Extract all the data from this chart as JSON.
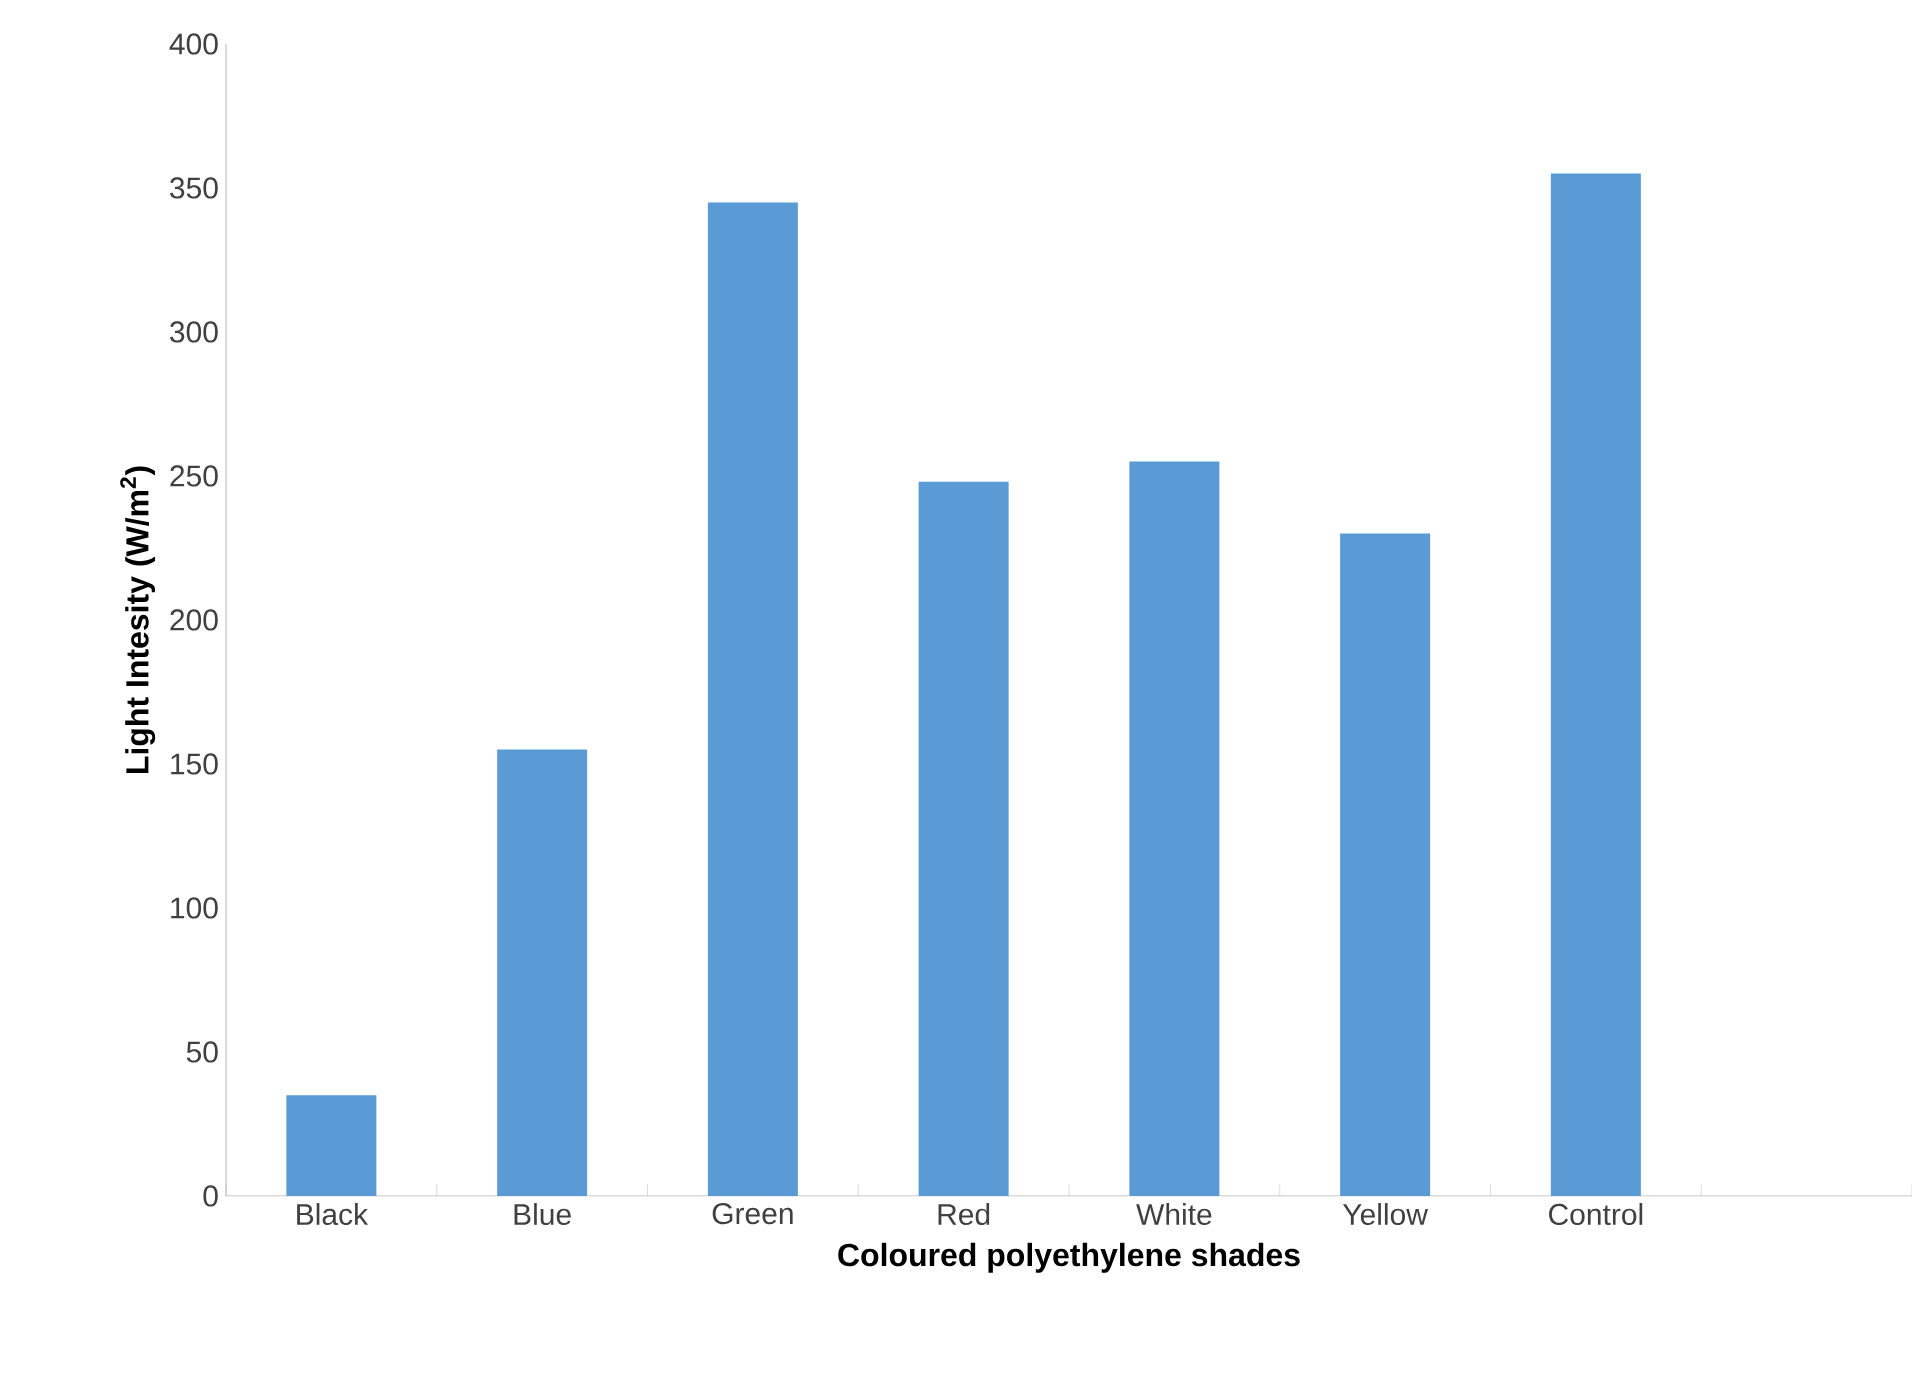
{
  "chart_data": {
    "type": "bar",
    "xlabel": "Coloured polyethylene shades",
    "ylabel": "Light Intesity (W/m$^{2}$)",
    "categories": [
      "Black",
      "Blue",
      "Green",
      "Red",
      "White",
      "Yellow",
      "Control",
      null
    ],
    "values": [
      35,
      155,
      345,
      248,
      255,
      230,
      355,
      null
    ],
    "color": "#5b9bd5",
    "ylim": [
      0,
      400
    ],
    "yticks": [
      0,
      50,
      100,
      150,
      200,
      250,
      300,
      350,
      400
    ],
    "grid": false
  }
}
